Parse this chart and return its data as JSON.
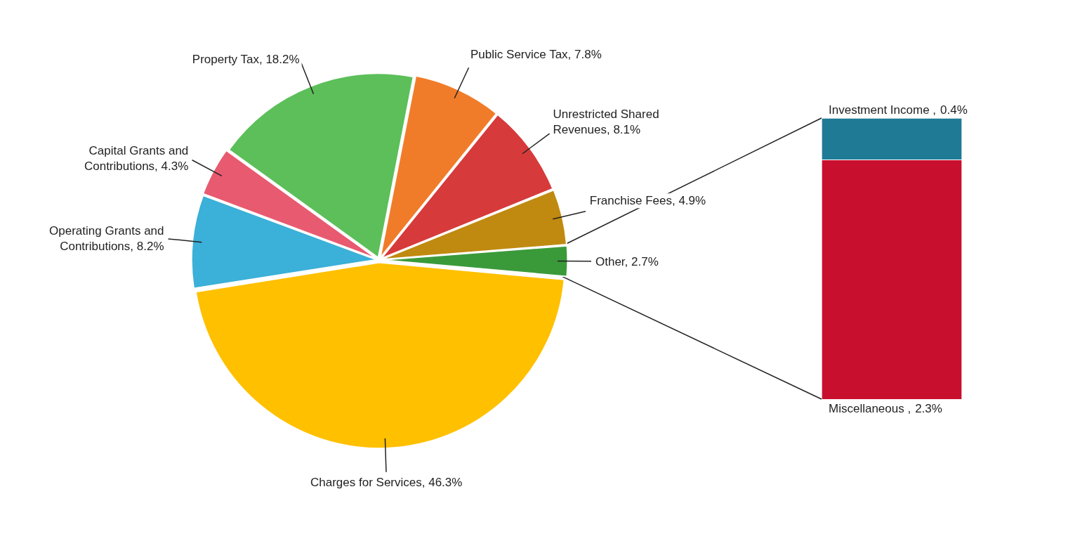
{
  "chart_data": [
    {
      "type": "pie",
      "categories": [
        "Public Service Tax",
        "Unrestricted Shared Revenues",
        "Franchise Fees",
        "Other",
        "Charges for Services",
        "Operating Grants and Contributions",
        "Capital Grants and Contributions",
        "Property Tax"
      ],
      "values": [
        7.8,
        8.1,
        4.9,
        2.7,
        46.3,
        8.2,
        4.3,
        18.2
      ],
      "colors": [
        "#f07c2a",
        "#d63a3a",
        "#c08a10",
        "#3a9a3a",
        "#ffc000",
        "#3bb0d8",
        "#e85a70",
        "#5cbf5a"
      ],
      "value_labels": [
        "7.8%",
        "8.1%",
        "4.9%",
        "2.7%",
        "46.3%",
        "8.2%",
        "4.3%",
        "18.2%"
      ]
    },
    {
      "type": "bar",
      "stacked": true,
      "categories": [
        null
      ],
      "series": [
        {
          "name": "Miscellaneous ,",
          "color": "#c8102e",
          "values": [
            2.3
          ],
          "value_labels": [
            "2.3%"
          ]
        },
        {
          "name": "Investment Income ,",
          "color": "#1f7a96",
          "values": [
            0.4
          ],
          "value_labels": [
            "0.4%"
          ]
        }
      ]
    }
  ]
}
